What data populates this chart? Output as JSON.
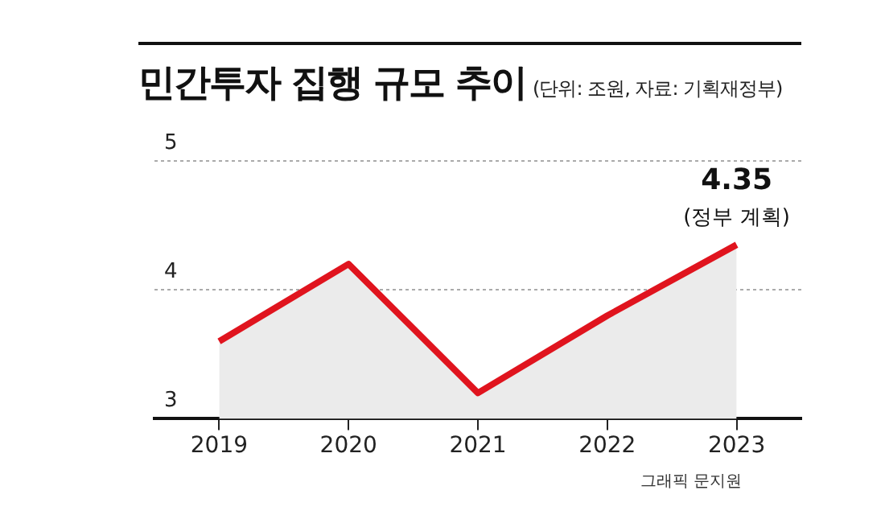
{
  "chart_data": {
    "type": "area",
    "title": "민간투자 집행 규모 추이",
    "subtitle": "(단위: 조원, 자료: 기획재정부)",
    "categories": [
      "2019",
      "2020",
      "2021",
      "2022",
      "2023"
    ],
    "series": [
      {
        "color": "#e0141e",
        "values": [
          3.6,
          4.2,
          3.2,
          3.8,
          4.35
        ]
      }
    ],
    "ylim": [
      3,
      5
    ],
    "yticks": [
      3,
      4,
      5
    ],
    "grid": "y",
    "legend": false,
    "annotations": [
      {
        "text": "4.35",
        "x": "2023",
        "y": 4.35
      },
      {
        "text": "(정부 계획)",
        "x": "2023",
        "y": 4.35
      },
      "그래픽 문지원"
    ]
  }
}
